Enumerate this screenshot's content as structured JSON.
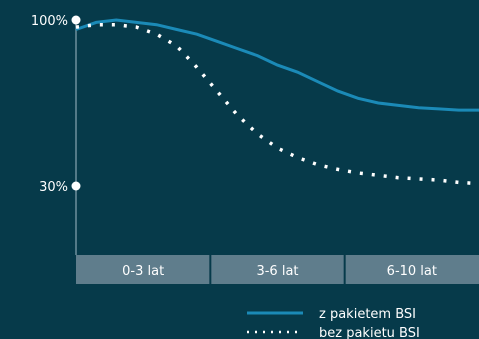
{
  "chart_data": {
    "type": "line",
    "categories": [
      "0-3 lat",
      "3-6 lat",
      "6-10 lat"
    ],
    "y_ticks": [
      "100%",
      "30%"
    ],
    "y_tick_values": [
      100,
      30
    ],
    "ylim": [
      30,
      100
    ],
    "grid": false,
    "legend_position": "bottom-right",
    "x": [
      0,
      0.5,
      1,
      1.5,
      2,
      2.5,
      3,
      3.5,
      4,
      4.5,
      5,
      5.5,
      6,
      6.5,
      7,
      7.5,
      8,
      8.5,
      9,
      9.5,
      10
    ],
    "series": [
      {
        "name": "z pakietem BSI",
        "style": "solid",
        "color": "#1b8ab7",
        "values": [
          96,
          99,
          100,
          99,
          98,
          96,
          94,
          91,
          88,
          85,
          81,
          78,
          74,
          70,
          67,
          65,
          64,
          63,
          62.5,
          62,
          62
        ]
      },
      {
        "name": "bez pakietu BSI",
        "style": "dotted",
        "color": "#ffffff",
        "values": [
          97,
          98,
          98,
          97,
          94,
          89,
          80,
          70,
          60,
          52,
          46,
          42,
          39,
          37,
          35.5,
          34.5,
          33.5,
          33,
          32.5,
          31.5,
          31
        ]
      }
    ]
  }
}
